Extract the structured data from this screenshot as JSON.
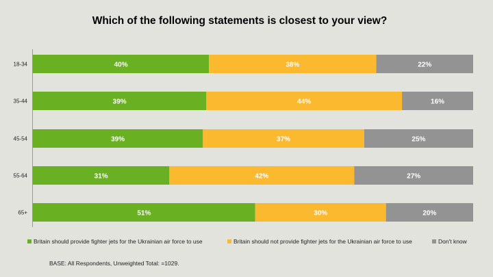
{
  "chart_data": {
    "type": "bar",
    "orientation": "horizontal",
    "stacked": true,
    "title": "Which of the following statements is closest to your view?",
    "categories": [
      "18-34",
      "35-44",
      "45-54",
      "55-64",
      "65+"
    ],
    "series": [
      {
        "name": "Britain should provide fighter jets for the Ukrainian air force to use",
        "color": "#6ab023",
        "values": [
          40,
          39,
          39,
          31,
          51
        ]
      },
      {
        "name": "Britain should not provide fighter jets for the Ukrainian air force to use",
        "color": "#fbb92f",
        "values": [
          38,
          44,
          37,
          42,
          30
        ]
      },
      {
        "name": "Don't know",
        "color": "#939393",
        "values": [
          22,
          16,
          25,
          27,
          20
        ]
      }
    ],
    "value_suffix": "%",
    "legend_position": "bottom",
    "grid": false
  },
  "footnote": "BASE: All Respondents, Unweighted Total: =1029."
}
